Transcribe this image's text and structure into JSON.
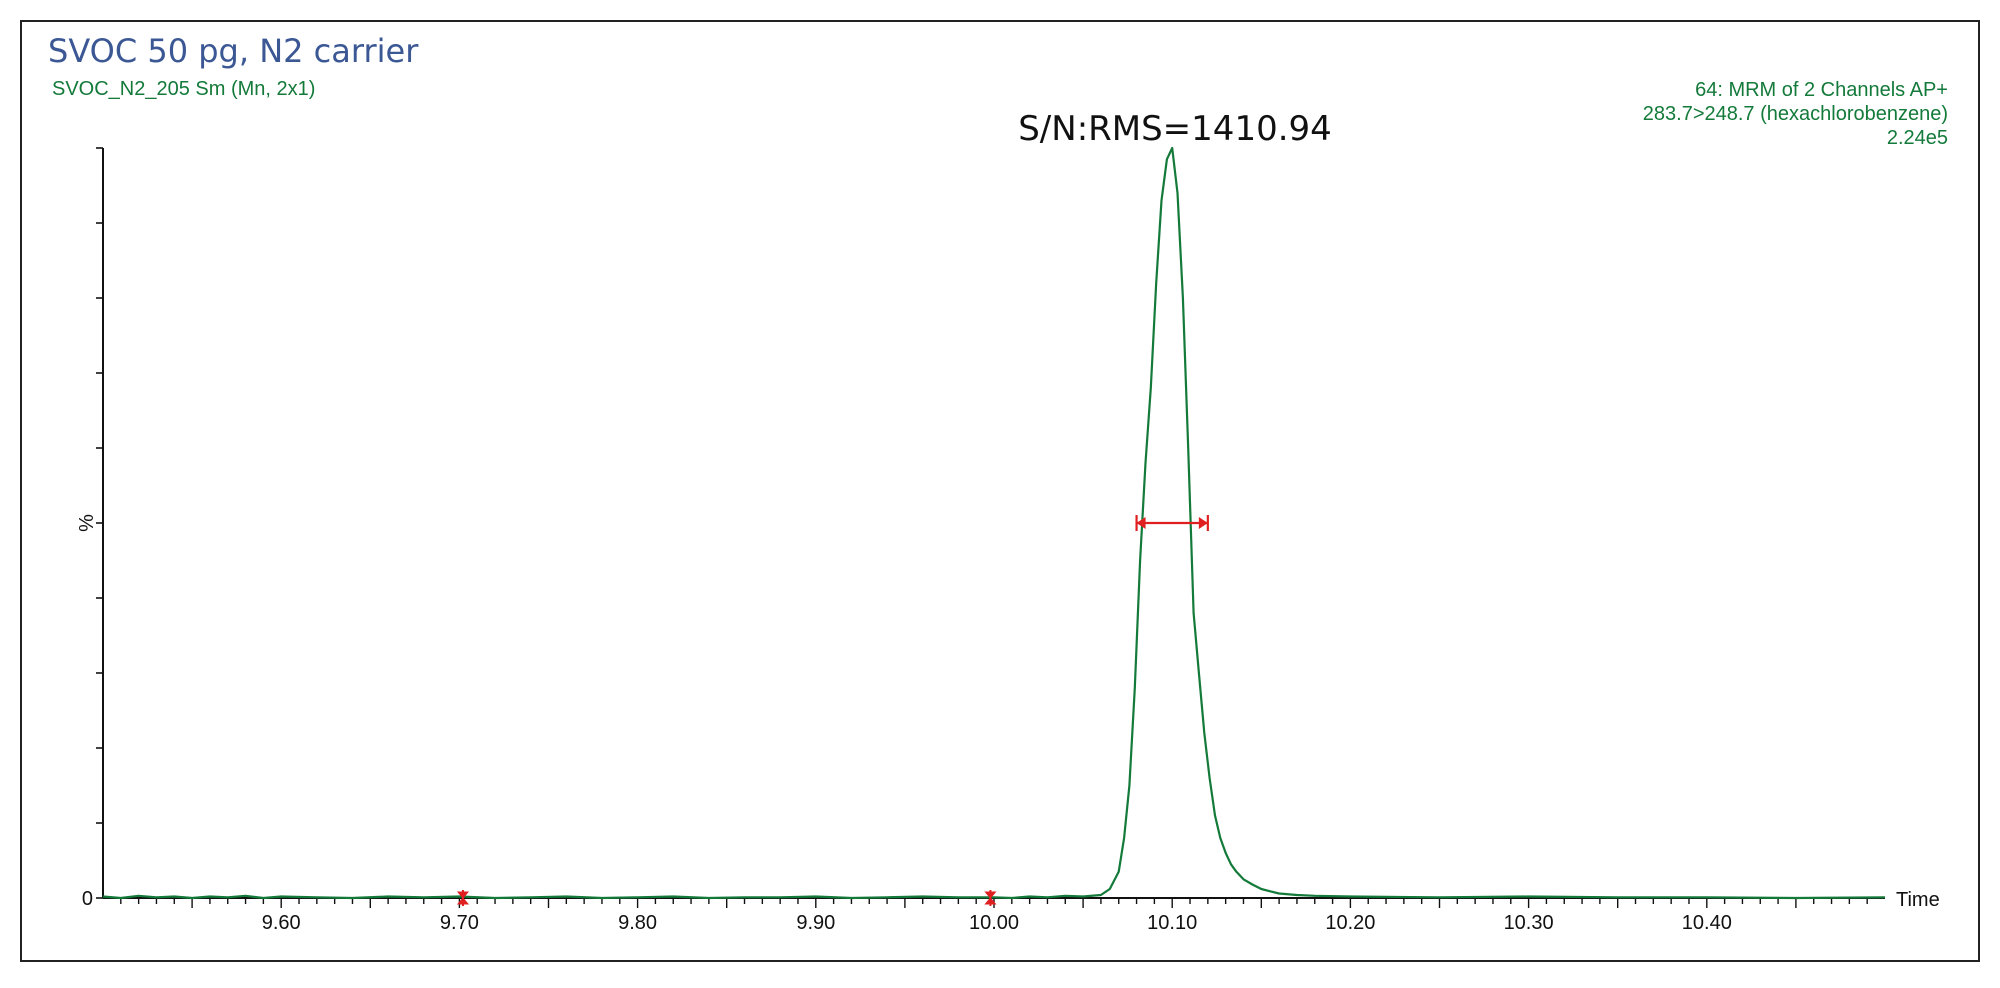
{
  "header": {
    "title": "SVOC 50 pg, N2 carrier",
    "subtitle": "SVOC_N2_205 Sm (Mn, 2x1)",
    "channel_line1": "64: MRM of 2 Channels AP+",
    "channel_line2": "283.7>248.7 (hexachlorobenzene)",
    "channel_line3": "2.24e5"
  },
  "colors": {
    "trace": "#137a3a",
    "title": "#3b5794",
    "marker": "#e02020",
    "axis": "#111111"
  },
  "chart_data": {
    "type": "line",
    "title": "SVOC 50 pg, N2 carrier",
    "xlabel": "Time",
    "ylabel": "%",
    "xlim": [
      9.5,
      10.5
    ],
    "ylim": [
      0,
      100
    ],
    "xticks": [
      "9.60",
      "9.70",
      "9.80",
      "9.90",
      "10.00",
      "10.10",
      "10.20",
      "10.30",
      "10.40"
    ],
    "yticks": [
      "0",
      "%"
    ],
    "grid": false,
    "annotation": "S/N:RMS=1410.94",
    "noise_window": [
      9.702,
      9.998
    ],
    "peak_width_at_half_height": {
      "start": 10.08,
      "end": 10.12,
      "y": 50
    },
    "series": [
      {
        "x": [
          9.5,
          9.51,
          9.52,
          9.53,
          9.54,
          9.55,
          9.56,
          9.57,
          9.58,
          9.59,
          9.6,
          9.62,
          9.64,
          9.66,
          9.68,
          9.7,
          9.72,
          9.74,
          9.76,
          9.78,
          9.8,
          9.82,
          9.84,
          9.86,
          9.88,
          9.9,
          9.92,
          9.94,
          9.96,
          9.98,
          10.0,
          10.01,
          10.02,
          10.03,
          10.04,
          10.05,
          10.06,
          10.065,
          10.07,
          10.073,
          10.076,
          10.079,
          10.082,
          10.085,
          10.088,
          10.091,
          10.094,
          10.097,
          10.1,
          10.103,
          10.106,
          10.109,
          10.112,
          10.115,
          10.118,
          10.121,
          10.124,
          10.127,
          10.13,
          10.133,
          10.136,
          10.14,
          10.145,
          10.15,
          10.155,
          10.16,
          10.17,
          10.18,
          10.2,
          10.25,
          10.3,
          10.35,
          10.4,
          10.45,
          10.5
        ],
        "y": [
          0.2,
          0.0,
          0.3,
          0.1,
          0.2,
          0.0,
          0.2,
          0.1,
          0.3,
          0.0,
          0.2,
          0.1,
          0.0,
          0.2,
          0.1,
          0.2,
          0.0,
          0.1,
          0.2,
          0.0,
          0.1,
          0.2,
          0.0,
          0.1,
          0.1,
          0.2,
          0.0,
          0.1,
          0.2,
          0.1,
          0.1,
          0.0,
          0.2,
          0.1,
          0.3,
          0.2,
          0.4,
          1.2,
          3.5,
          8.0,
          15.0,
          28.0,
          45.0,
          58.0,
          68.0,
          82.0,
          93.0,
          98.5,
          100.0,
          94.0,
          80.0,
          60.0,
          38.0,
          30.0,
          22.0,
          16.0,
          11.0,
          8.0,
          6.0,
          4.5,
          3.5,
          2.5,
          1.8,
          1.2,
          0.9,
          0.6,
          0.4,
          0.3,
          0.2,
          0.1,
          0.2,
          0.1,
          0.1,
          0.0,
          0.1
        ]
      }
    ]
  }
}
